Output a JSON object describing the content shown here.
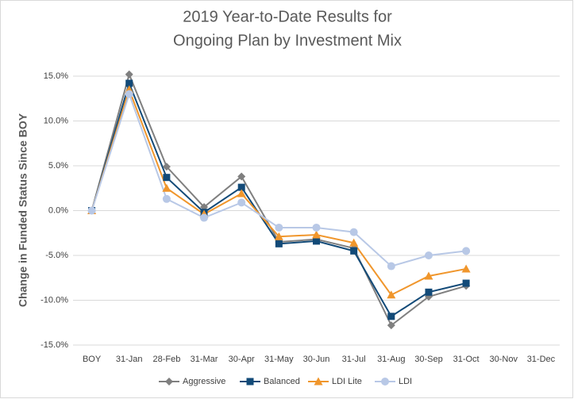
{
  "chart_data": {
    "type": "line",
    "title": [
      "2019 Year-to-Date Results for",
      "Ongoing Plan by Investment Mix"
    ],
    "ylabel": "Change in Funded Status Since BOY",
    "categories": [
      "BOY",
      "31-Jan",
      "28-Feb",
      "31-Mar",
      "30-Apr",
      "31-May",
      "30-Jun",
      "31-Jul",
      "31-Aug",
      "30-Sep",
      "31-Oct",
      "30-Nov",
      "31-Dec"
    ],
    "series": [
      {
        "name": "Aggressive",
        "color": "#7f7f7f",
        "marker": "diamond",
        "values": [
          0,
          15.2,
          4.9,
          0.4,
          3.8,
          -3.5,
          -3.2,
          -4.2,
          -12.8,
          -9.6,
          -8.4,
          null,
          null
        ]
      },
      {
        "name": "Balanced",
        "color": "#124a78",
        "marker": "square",
        "values": [
          0,
          14.2,
          3.7,
          -0.2,
          2.6,
          -3.7,
          -3.4,
          -4.5,
          -11.8,
          -9.1,
          -8.1,
          null,
          null
        ]
      },
      {
        "name": "LDI Lite",
        "color": "#f0962c",
        "marker": "triangle",
        "values": [
          0,
          13.5,
          2.5,
          -0.4,
          1.9,
          -2.9,
          -2.7,
          -3.6,
          -9.4,
          -7.3,
          -6.5,
          null,
          null
        ]
      },
      {
        "name": "LDI",
        "color": "#b8c8e6",
        "marker": "circle",
        "values": [
          0,
          13.0,
          1.3,
          -0.8,
          0.9,
          -1.9,
          -1.9,
          -2.4,
          -6.2,
          -5.0,
          -4.5,
          null,
          null
        ]
      }
    ],
    "ylim": [
      -15,
      15
    ],
    "yticks": [
      {
        "value": -15,
        "label": "-15.0%"
      },
      {
        "value": -10,
        "label": "-10.0%"
      },
      {
        "value": -5,
        "label": "-5.0%"
      },
      {
        "value": 0,
        "label": "0.0%"
      },
      {
        "value": 5,
        "label": "5.0%"
      },
      {
        "value": 10,
        "label": "10.0%"
      },
      {
        "value": 15,
        "label": "15.0%"
      }
    ],
    "grid": true,
    "legend": "bottom"
  }
}
